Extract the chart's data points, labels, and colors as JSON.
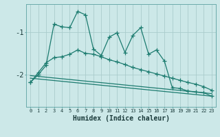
{
  "xlabel": "Humidex (Indice chaleur)",
  "background_color": "#cce8e8",
  "grid_color": "#aacccc",
  "line_color": "#1a7a6e",
  "x_values": [
    0,
    1,
    2,
    3,
    4,
    5,
    6,
    7,
    8,
    9,
    10,
    11,
    12,
    13,
    14,
    15,
    16,
    17,
    18,
    19,
    20,
    21,
    22,
    23
  ],
  "series1": [
    -2.18,
    -2.0,
    -1.78,
    -0.82,
    -0.88,
    -0.9,
    -0.52,
    -0.6,
    -1.4,
    -1.55,
    -1.12,
    -1.02,
    -1.48,
    -1.08,
    -0.9,
    -1.52,
    -1.42,
    -1.68,
    -2.3,
    -2.32,
    -2.38,
    -2.4,
    -2.42,
    -2.5
  ],
  "series2_x": [
    0,
    23
  ],
  "series2_y": [
    -2.08,
    -2.5
  ],
  "series3_x": [
    0,
    23
  ],
  "series3_y": [
    -2.02,
    -2.44
  ],
  "series4": [
    -2.18,
    -1.95,
    -1.72,
    -1.6,
    -1.58,
    -1.52,
    -1.42,
    -1.5,
    -1.52,
    -1.58,
    -1.65,
    -1.7,
    -1.76,
    -1.83,
    -1.88,
    -1.93,
    -1.98,
    -2.03,
    -2.08,
    -2.13,
    -2.18,
    -2.22,
    -2.28,
    -2.36
  ],
  "ylim": [
    -2.75,
    -0.35
  ],
  "yticks": [
    -2.0,
    -1.0
  ],
  "ytick_labels": [
    "-2",
    "-1"
  ],
  "xlim": [
    -0.5,
    23.5
  ]
}
